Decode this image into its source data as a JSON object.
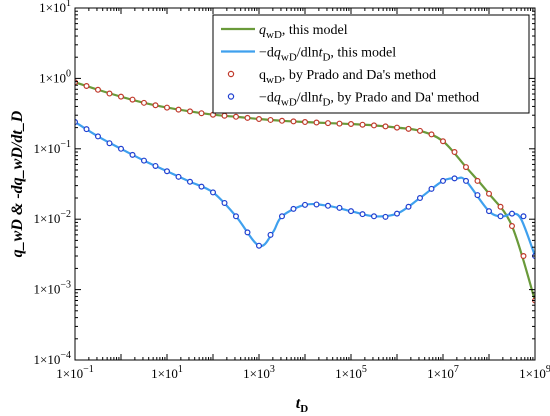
{
  "chart_data": {
    "type": "line",
    "xlabel": {
      "main": "t",
      "sub": "D"
    },
    "ylabel": "q_wD & -dq_wD/dt_D",
    "xscale": "log",
    "yscale": "log",
    "xlim": [
      0.1,
      1000000000
    ],
    "ylim": [
      0.0001,
      10
    ],
    "grid": false,
    "legend_position": "top-right",
    "x_ticks": [
      {
        "value": 0.1,
        "base": "1×10",
        "exp": "−1"
      },
      {
        "value": 10,
        "base": "1×10",
        "exp": "1"
      },
      {
        "value": 1000,
        "base": "1×10",
        "exp": "3"
      },
      {
        "value": 100000,
        "base": "1×10",
        "exp": "5"
      },
      {
        "value": 10000000,
        "base": "1×10",
        "exp": "7"
      },
      {
        "value": 1000000000,
        "base": "1×10",
        "exp": "9"
      }
    ],
    "y_ticks": [
      {
        "value": 0.0001,
        "base": "1×10",
        "exp": "−4"
      },
      {
        "value": 0.001,
        "base": "1×10",
        "exp": "−3"
      },
      {
        "value": 0.01,
        "base": "1×10",
        "exp": "−2"
      },
      {
        "value": 0.1,
        "base": "1×10",
        "exp": "−1"
      },
      {
        "value": 1,
        "base": "1×10",
        "exp": "0"
      },
      {
        "value": 10,
        "base": "1×10",
        "exp": "1"
      }
    ],
    "legend": [
      {
        "kind": "line",
        "color": "#6a9a3a",
        "parts": [
          {
            "t": "q",
            "i": true
          },
          {
            "t": "wD",
            "sub": true
          },
          {
            "t": ", this  model"
          }
        ]
      },
      {
        "kind": "line",
        "color": "#3fa0ee",
        "parts": [
          {
            "t": "−d"
          },
          {
            "t": "q",
            "i": true
          },
          {
            "t": "wD",
            "sub": true
          },
          {
            "t": "/dln"
          },
          {
            "t": "t",
            "i": true
          },
          {
            "t": "D",
            "sub": true
          },
          {
            "t": ", this  model"
          }
        ]
      },
      {
        "kind": "marker",
        "color": "#c0392b",
        "parts": [
          {
            "t": "q"
          },
          {
            "t": "wD",
            "sub": true
          },
          {
            "t": ", by Prado and Da's method"
          }
        ]
      },
      {
        "kind": "marker",
        "color": "#1f3fd0",
        "parts": [
          {
            "t": "−d"
          },
          {
            "t": "q",
            "i": true
          },
          {
            "t": "wD",
            "sub": true
          },
          {
            "t": "/dln"
          },
          {
            "t": "t",
            "i": true
          },
          {
            "t": "D",
            "sub": true
          },
          {
            "t": ", by Prado and Da' method"
          }
        ]
      }
    ],
    "series": [
      {
        "name": "q_wD, this model",
        "kind": "line",
        "color": "#6a9a3a",
        "x": [
          0.1,
          0.316,
          1,
          3.16,
          10,
          31.6,
          100,
          316,
          1000,
          3160,
          10000,
          31600,
          100000,
          316000,
          1000000,
          3160000,
          10000000,
          31600000,
          100000000,
          316000000,
          1000000000
        ],
        "y": [
          0.88,
          0.69,
          0.55,
          0.45,
          0.385,
          0.34,
          0.305,
          0.285,
          0.265,
          0.25,
          0.24,
          0.232,
          0.225,
          0.215,
          0.2,
          0.18,
          0.128,
          0.055,
          0.023,
          0.008,
          0.0007
        ]
      },
      {
        "name": "−dq_wD/dln t_D, this model",
        "kind": "line",
        "color": "#3fa0ee",
        "x": [
          0.1,
          0.316,
          1,
          3.16,
          10,
          31.6,
          100,
          316,
          1000,
          2000,
          3160,
          10000,
          31600,
          100000,
          316000,
          1000000,
          3160000,
          10000000,
          20000000,
          31600000,
          100000000,
          200000000,
          316000000,
          500000000,
          1000000000
        ],
        "y": [
          0.24,
          0.15,
          0.1,
          0.068,
          0.048,
          0.034,
          0.024,
          0.011,
          0.0042,
          0.0065,
          0.011,
          0.016,
          0.0155,
          0.013,
          0.011,
          0.012,
          0.02,
          0.035,
          0.038,
          0.035,
          0.013,
          0.011,
          0.012,
          0.01,
          0.003
        ]
      },
      {
        "name": "q_wD, by Prado and Da's method",
        "kind": "marker",
        "color": "#c0392b",
        "x": [
          0.1,
          0.178,
          0.316,
          0.562,
          1,
          1.78,
          3.16,
          5.62,
          10,
          17.8,
          31.6,
          56.2,
          100,
          178,
          316,
          562,
          1000,
          1780,
          3160,
          5620,
          10000,
          17800,
          31600,
          56200,
          100000,
          178000,
          316000,
          562000,
          1000000,
          1780000,
          3160000,
          5620000,
          10000000,
          17800000,
          31600000,
          56200000,
          100000000,
          178000000,
          316000000,
          562000000,
          1000000000
        ],
        "y": [
          0.88,
          0.78,
          0.69,
          0.61,
          0.55,
          0.5,
          0.45,
          0.415,
          0.385,
          0.36,
          0.34,
          0.32,
          0.305,
          0.295,
          0.285,
          0.275,
          0.265,
          0.257,
          0.25,
          0.245,
          0.24,
          0.236,
          0.232,
          0.228,
          0.225,
          0.22,
          0.215,
          0.208,
          0.2,
          0.192,
          0.18,
          0.16,
          0.128,
          0.09,
          0.055,
          0.035,
          0.023,
          0.015,
          0.008,
          0.003,
          0.0007
        ]
      },
      {
        "name": "−dq_wD/dln t_D, by Prado and Da' method",
        "kind": "marker",
        "color": "#1f3fd0",
        "x": [
          0.1,
          0.178,
          0.316,
          0.562,
          1,
          1.78,
          3.16,
          5.62,
          10,
          17.8,
          31.6,
          56.2,
          100,
          178,
          316,
          562,
          1000,
          1780,
          3160,
          5620,
          10000,
          17800,
          31600,
          56200,
          100000,
          178000,
          316000,
          562000,
          1000000,
          1780000,
          3160000,
          5620000,
          10000000,
          17800000,
          31600000,
          56200000,
          100000000,
          178000000,
          316000000,
          562000000,
          1000000000
        ],
        "y": [
          0.24,
          0.19,
          0.15,
          0.12,
          0.1,
          0.082,
          0.068,
          0.057,
          0.048,
          0.04,
          0.034,
          0.029,
          0.024,
          0.017,
          0.011,
          0.0065,
          0.0042,
          0.006,
          0.011,
          0.014,
          0.016,
          0.0162,
          0.0155,
          0.0145,
          0.013,
          0.0118,
          0.011,
          0.0108,
          0.012,
          0.015,
          0.02,
          0.027,
          0.035,
          0.038,
          0.035,
          0.022,
          0.013,
          0.011,
          0.012,
          0.011,
          0.003
        ]
      }
    ]
  }
}
